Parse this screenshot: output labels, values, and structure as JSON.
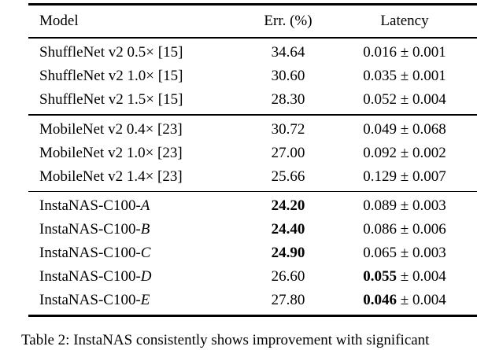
{
  "table": {
    "headers": [
      "Model",
      "Err. (%)",
      "Latency"
    ],
    "plus_minus": "±",
    "groups": [
      {
        "name": "shufflenet",
        "rows": [
          {
            "model": "ShuffleNet v2 0.5× [15]",
            "model_italic": "",
            "err": "34.64",
            "err_bold": false,
            "lat_mean": "0.016",
            "lat_std": "0.001",
            "lat_bold": false
          },
          {
            "model": "ShuffleNet v2 1.0× [15]",
            "model_italic": "",
            "err": "30.60",
            "err_bold": false,
            "lat_mean": "0.035",
            "lat_std": "0.001",
            "lat_bold": false
          },
          {
            "model": "ShuffleNet v2 1.5× [15]",
            "model_italic": "",
            "err": "28.30",
            "err_bold": false,
            "lat_mean": "0.052",
            "lat_std": "0.004",
            "lat_bold": false
          }
        ]
      },
      {
        "name": "mobilenet",
        "rows": [
          {
            "model": "MobileNet v2 0.4× [23]",
            "model_italic": "",
            "err": "30.72",
            "err_bold": false,
            "lat_mean": "0.049",
            "lat_std": "0.068",
            "lat_bold": false
          },
          {
            "model": "MobileNet v2 1.0× [23]",
            "model_italic": "",
            "err": "27.00",
            "err_bold": false,
            "lat_mean": "0.092",
            "lat_std": "0.002",
            "lat_bold": false
          },
          {
            "model": "MobileNet v2 1.4× [23]",
            "model_italic": "",
            "err": "25.66",
            "err_bold": false,
            "lat_mean": "0.129",
            "lat_std": "0.007",
            "lat_bold": false
          }
        ]
      },
      {
        "name": "instanas",
        "rows": [
          {
            "model": "InstaNAS-C100-",
            "model_italic": "A",
            "err": "24.20",
            "err_bold": true,
            "lat_mean": "0.089",
            "lat_std": "0.003",
            "lat_bold": false
          },
          {
            "model": "InstaNAS-C100-",
            "model_italic": "B",
            "err": "24.40",
            "err_bold": true,
            "lat_mean": "0.086",
            "lat_std": "0.006",
            "lat_bold": false
          },
          {
            "model": "InstaNAS-C100-",
            "model_italic": "C",
            "err": "24.90",
            "err_bold": true,
            "lat_mean": "0.065",
            "lat_std": "0.003",
            "lat_bold": false
          },
          {
            "model": "InstaNAS-C100-",
            "model_italic": "D",
            "err": "26.60",
            "err_bold": false,
            "lat_mean": "0.055",
            "lat_std": "0.004",
            "lat_bold": true
          },
          {
            "model": "InstaNAS-C100-",
            "model_italic": "E",
            "err": "27.80",
            "err_bold": false,
            "lat_mean": "0.046",
            "lat_std": "0.004",
            "lat_bold": true
          }
        ]
      }
    ]
  },
  "caption": {
    "text": "Table 2: InstaNAS consistently shows improvement with significant"
  },
  "colors": {
    "text": "#000000",
    "background": "#ffffff",
    "rule": "#000000"
  }
}
